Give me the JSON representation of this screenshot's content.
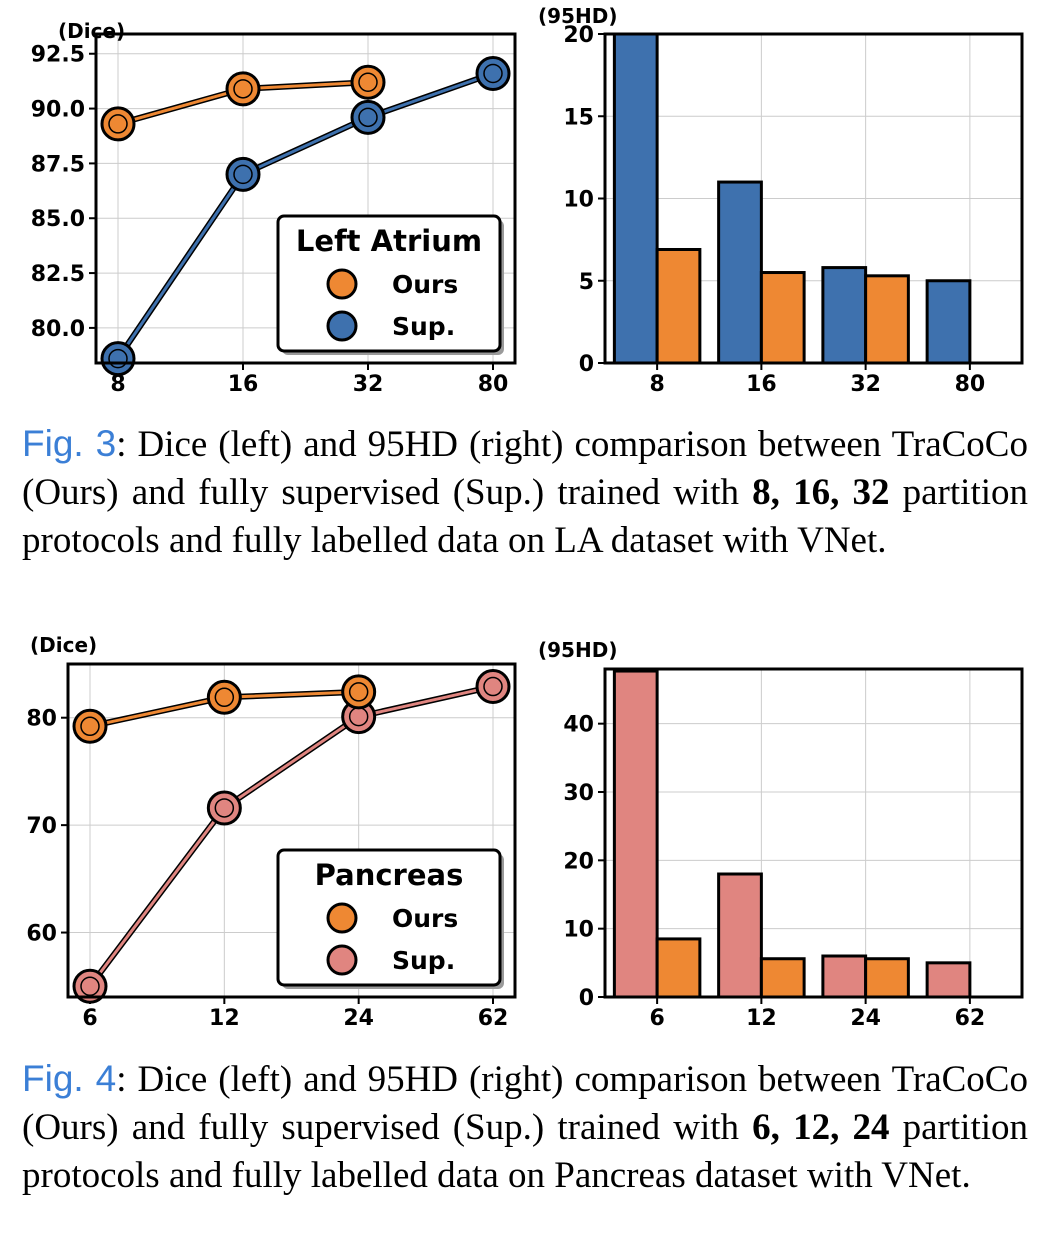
{
  "colors": {
    "ours": "#EE8833",
    "sup_la": "#3E71AE",
    "sup_pancreas": "#E08580",
    "grid": "#cccccc"
  },
  "fig3": {
    "caption": {
      "ref": "Fig. 3",
      "t1": ": Dice (left) and 95HD (right) comparison between TraCoCo (Ours) and fully supervised (Sup.) trained with ",
      "bold": "8, 16, 32",
      "t2": " partition protocols and fully labelled data on LA dataset with VNet."
    }
  },
  "fig4": {
    "caption": {
      "ref": "Fig. 4",
      "t1": ": Dice (left) and 95HD (right) comparison between TraCoCo (Ours) and fully supervised (Sup.) trained with ",
      "bold": "6, 12, 24",
      "t2": " partition protocols and fully labelled data on Pancreas dataset with VNet."
    }
  },
  "chart_data": [
    {
      "id": "la_dice",
      "type": "line",
      "ylabel": "(Dice)",
      "categories": [
        "8",
        "16",
        "32",
        "80"
      ],
      "ylim": [
        78.4,
        93.4
      ],
      "yticks": [
        80.0,
        82.5,
        85.0,
        87.5,
        90.0,
        92.5
      ],
      "ytick_decimals": 1,
      "grid": true,
      "legend": {
        "title": "Left Atrium",
        "position": "lower-right"
      },
      "series": [
        {
          "name": "Ours",
          "values": [
            89.3,
            90.9,
            91.2,
            null
          ],
          "color_key": "ours"
        },
        {
          "name": "Sup.",
          "values": [
            78.6,
            87.0,
            89.6,
            91.6
          ],
          "color_key": "sup_la"
        }
      ]
    },
    {
      "id": "la_95hd",
      "type": "bar",
      "ylabel": "(95HD)",
      "categories": [
        "8",
        "16",
        "32",
        "80"
      ],
      "ylim": [
        0,
        20
      ],
      "yticks": [
        0,
        5,
        10,
        15,
        20
      ],
      "ytick_decimals": 0,
      "grid": true,
      "series": [
        {
          "name": "Sup.",
          "values": [
            20.0,
            11.0,
            5.8,
            5.0
          ],
          "color_key": "sup_la"
        },
        {
          "name": "Ours",
          "values": [
            6.9,
            5.5,
            5.3,
            null
          ],
          "color_key": "ours"
        }
      ]
    },
    {
      "id": "pancreas_dice",
      "type": "line",
      "ylabel": "(Dice)",
      "categories": [
        "6",
        "12",
        "24",
        "62"
      ],
      "ylim": [
        54,
        85
      ],
      "yticks": [
        60,
        70,
        80
      ],
      "ytick_decimals": 0,
      "grid": true,
      "legend": {
        "title": "Pancreas",
        "position": "lower-right"
      },
      "series": [
        {
          "name": "Ours",
          "values": [
            79.2,
            81.9,
            82.4,
            null
          ],
          "color_key": "ours"
        },
        {
          "name": "Sup.",
          "values": [
            55.0,
            71.6,
            80.1,
            82.9
          ],
          "color_key": "sup_pancreas"
        }
      ]
    },
    {
      "id": "pancreas_95hd",
      "type": "bar",
      "ylabel": "(95HD)",
      "categories": [
        "6",
        "12",
        "24",
        "62"
      ],
      "ylim": [
        0,
        48
      ],
      "yticks": [
        0,
        10,
        20,
        30,
        40
      ],
      "ytick_decimals": 0,
      "grid": true,
      "series": [
        {
          "name": "Sup.",
          "values": [
            47.7,
            18.0,
            6.0,
            5.0
          ],
          "color_key": "sup_pancreas"
        },
        {
          "name": "Ours",
          "values": [
            8.5,
            5.6,
            5.6,
            null
          ],
          "color_key": "ours"
        }
      ]
    }
  ]
}
